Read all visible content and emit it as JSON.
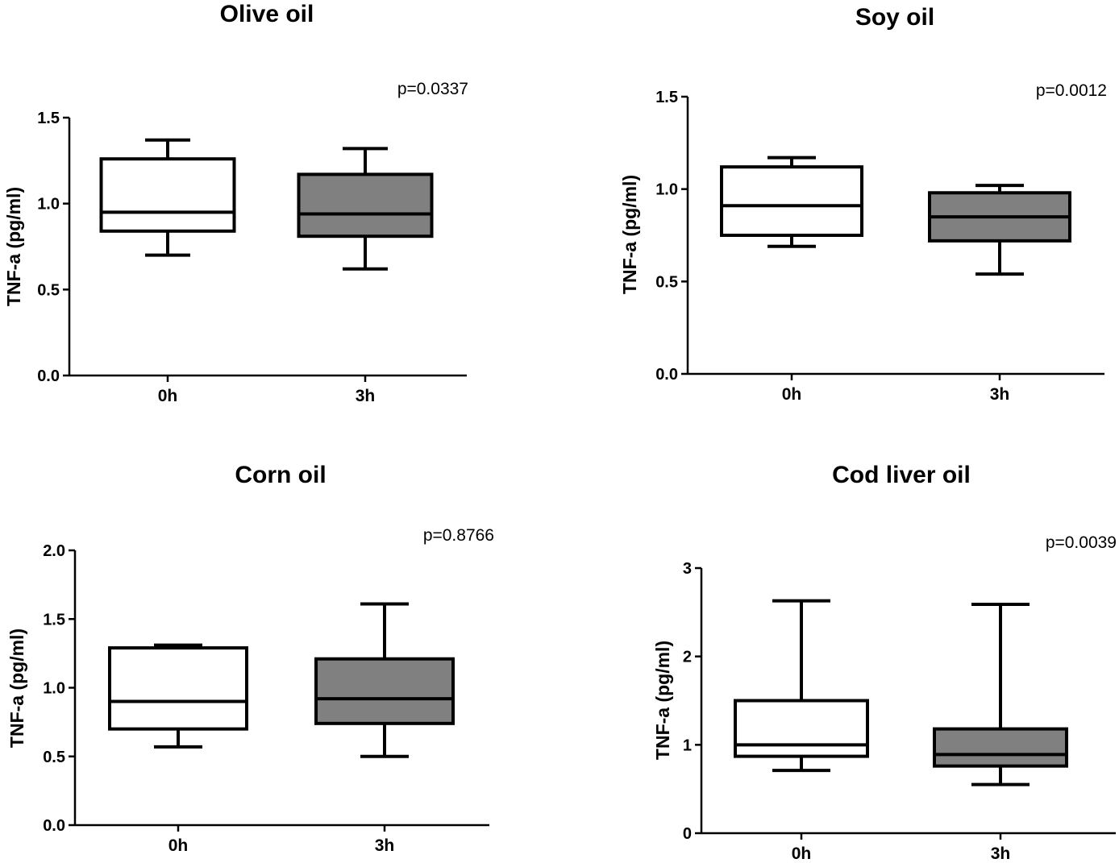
{
  "chart_data": [
    {
      "type": "boxplot",
      "title": "Olive oil",
      "ylabel": "TNF-a (pg/ml)",
      "annotation": "p=0.0337",
      "ylim": [
        0,
        1.5
      ],
      "yticks": [
        "0.0",
        "0.5",
        "1.0",
        "1.5"
      ],
      "ytick_values": [
        0,
        0.5,
        1.0,
        1.5
      ],
      "categories": [
        "0h",
        "3h"
      ],
      "boxes": [
        {
          "category": "0h",
          "min": 0.7,
          "q1": 0.84,
          "median": 0.95,
          "q3": 1.26,
          "max": 1.37,
          "fill": "#ffffff"
        },
        {
          "category": "3h",
          "min": 0.62,
          "q1": 0.81,
          "median": 0.94,
          "q3": 1.17,
          "max": 1.32,
          "fill": "#808080"
        }
      ]
    },
    {
      "type": "boxplot",
      "title": "Soy oil",
      "ylabel": "TNF-a (pg/ml)",
      "annotation": "p=0.0012",
      "ylim": [
        0,
        1.5
      ],
      "yticks": [
        "0.0",
        "0.5",
        "1.0",
        "1.5"
      ],
      "ytick_values": [
        0,
        0.5,
        1.0,
        1.5
      ],
      "categories": [
        "0h",
        "3h"
      ],
      "boxes": [
        {
          "category": "0h",
          "min": 0.69,
          "q1": 0.75,
          "median": 0.91,
          "q3": 1.12,
          "max": 1.17,
          "fill": "#ffffff"
        },
        {
          "category": "3h",
          "min": 0.54,
          "q1": 0.72,
          "median": 0.85,
          "q3": 0.98,
          "max": 1.02,
          "fill": "#808080"
        }
      ]
    },
    {
      "type": "boxplot",
      "title": "Corn oil",
      "ylabel": "TNF-a (pg/ml)",
      "annotation": "p=0.8766",
      "ylim": [
        0,
        2.0
      ],
      "yticks": [
        "0.0",
        "0.5",
        "1.0",
        "1.5",
        "2.0"
      ],
      "ytick_values": [
        0,
        0.5,
        1.0,
        1.5,
        2.0
      ],
      "categories": [
        "0h",
        "3h"
      ],
      "boxes": [
        {
          "category": "0h",
          "min": 0.57,
          "q1": 0.7,
          "median": 0.9,
          "q3": 1.29,
          "max": 1.31,
          "fill": "#ffffff"
        },
        {
          "category": "3h",
          "min": 0.5,
          "q1": 0.74,
          "median": 0.92,
          "q3": 1.21,
          "max": 1.61,
          "fill": "#808080"
        }
      ]
    },
    {
      "type": "boxplot",
      "title": "Cod liver oil",
      "ylabel": "TNF-a (pg/ml)",
      "annotation": "p=0.0039",
      "ylim": [
        0,
        3
      ],
      "yticks": [
        "0",
        "1",
        "2",
        "3"
      ],
      "ytick_values": [
        0,
        1,
        2,
        3
      ],
      "categories": [
        "0h",
        "3h"
      ],
      "boxes": [
        {
          "category": "0h",
          "min": 0.71,
          "q1": 0.87,
          "median": 1.0,
          "q3": 1.5,
          "max": 2.63,
          "fill": "#ffffff"
        },
        {
          "category": "3h",
          "min": 0.55,
          "q1": 0.76,
          "median": 0.89,
          "q3": 1.18,
          "max": 2.59,
          "fill": "#808080"
        }
      ]
    }
  ]
}
